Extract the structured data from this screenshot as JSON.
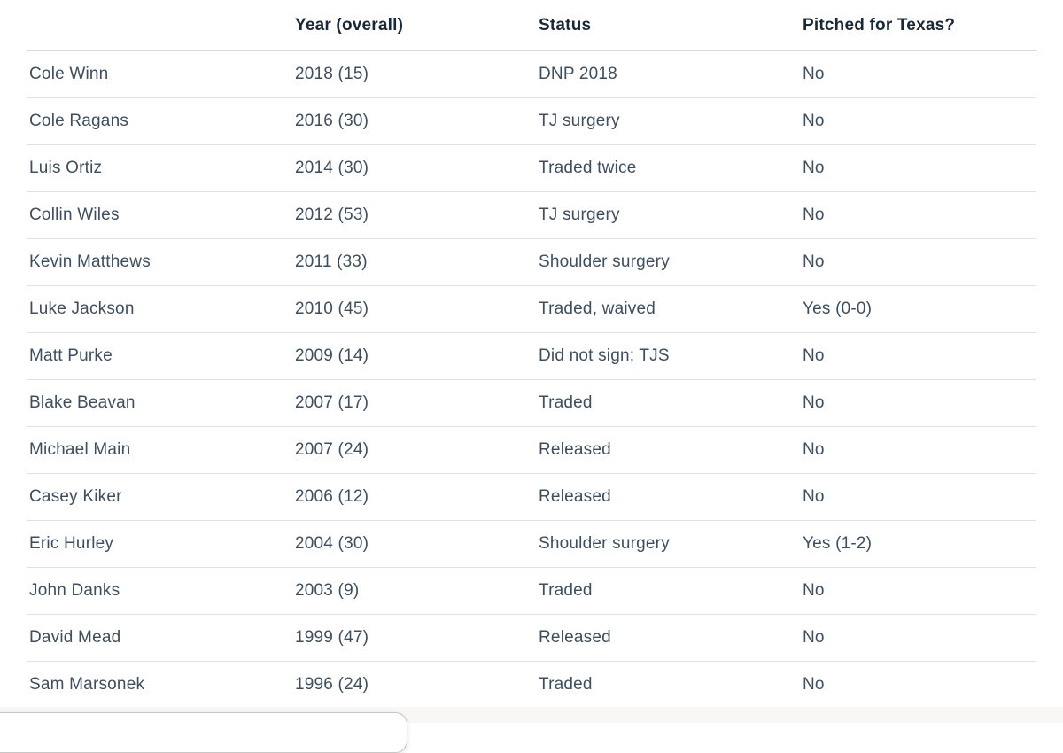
{
  "colors": {
    "header_text": "#1b2936",
    "body_text": "#3f4e5e",
    "row_separator": "#e2e2e2",
    "header_separator": "#d9d9d9",
    "page_background": "#ffffff"
  },
  "table": {
    "columns": [
      {
        "label": ""
      },
      {
        "label": "Year (overall)"
      },
      {
        "label": "Status"
      },
      {
        "label": "Pitched for Texas?"
      }
    ],
    "rows": [
      {
        "name": "Cole Winn",
        "year": "2018 (15)",
        "status": "DNP 2018",
        "pitched": "No"
      },
      {
        "name": "Cole Ragans",
        "year": "2016 (30)",
        "status": "TJ surgery",
        "pitched": "No"
      },
      {
        "name": "Luis Ortiz",
        "year": "2014 (30)",
        "status": "Traded twice",
        "pitched": "No"
      },
      {
        "name": "Collin Wiles",
        "year": "2012 (53)",
        "status": "TJ surgery",
        "pitched": "No"
      },
      {
        "name": "Kevin Matthews",
        "year": "2011 (33)",
        "status": "Shoulder surgery",
        "pitched": "No"
      },
      {
        "name": "Luke Jackson",
        "year": "2010 (45)",
        "status": "Traded, waived",
        "pitched": "Yes (0-0)"
      },
      {
        "name": "Matt Purke",
        "year": "2009 (14)",
        "status": "Did not sign; TJS",
        "pitched": "No"
      },
      {
        "name": "Blake Beavan",
        "year": "2007 (17)",
        "status": "Traded",
        "pitched": "No"
      },
      {
        "name": "Michael Main",
        "year": "2007 (24)",
        "status": "Released",
        "pitched": "No"
      },
      {
        "name": "Casey Kiker",
        "year": "2006 (12)",
        "status": "Released",
        "pitched": "No"
      },
      {
        "name": "Eric Hurley",
        "year": "2004 (30)",
        "status": "Shoulder surgery",
        "pitched": "Yes (1-2)"
      },
      {
        "name": "John Danks",
        "year": "2003 (9)",
        "status": "Traded",
        "pitched": "No"
      },
      {
        "name": "David Mead",
        "year": "1999 (47)",
        "status": "Released",
        "pitched": "No"
      },
      {
        "name": "Sam Marsonek",
        "year": "1996 (24)",
        "status": "Traded",
        "pitched": "No"
      }
    ]
  }
}
